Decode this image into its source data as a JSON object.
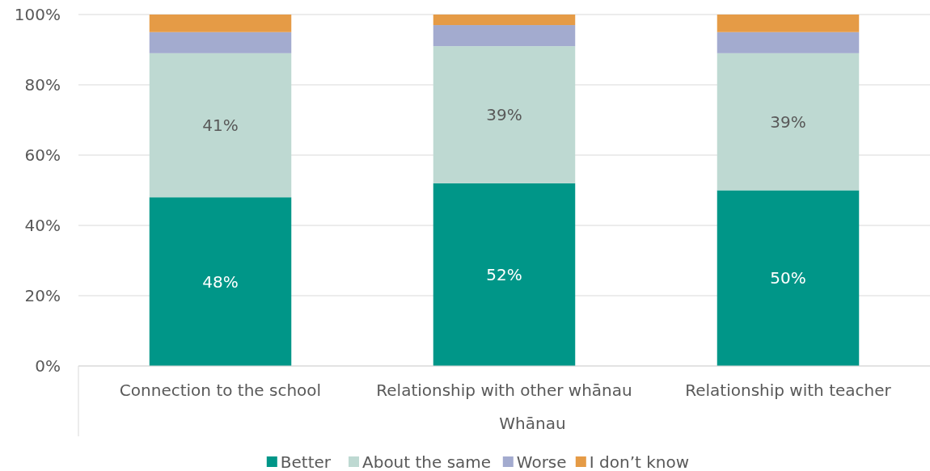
{
  "chart_data": {
    "type": "bar",
    "stacked": true,
    "xlabel": "Whānau",
    "categories": [
      "Connection to the school",
      "Relationship with other whānau",
      "Relationship with teacher"
    ],
    "series": [
      {
        "name": "Better",
        "color": "#009688",
        "values": [
          48,
          52,
          50
        ],
        "value_labels": [
          "48%",
          "52%",
          "50%"
        ]
      },
      {
        "name": "About the same",
        "color": "#bed9d2",
        "values": [
          41,
          39,
          39
        ],
        "value_labels": [
          "41%",
          "39%",
          "39%"
        ]
      },
      {
        "name": "Worse",
        "color": "#a3abcf",
        "values": [
          6,
          6,
          6
        ]
      },
      {
        "name": "I don’t know",
        "color": "#e59b46",
        "values": [
          5,
          3,
          5
        ]
      }
    ],
    "ylim": [
      0,
      100
    ],
    "yticks": [
      {
        "value": 0,
        "label": "0%"
      },
      {
        "value": 20,
        "label": "20%"
      },
      {
        "value": 40,
        "label": "40%"
      },
      {
        "value": 60,
        "label": "60%"
      },
      {
        "value": 80,
        "label": "80%"
      },
      {
        "value": 100,
        "label": "100%"
      }
    ],
    "grid": "y",
    "legend": "bottom"
  }
}
